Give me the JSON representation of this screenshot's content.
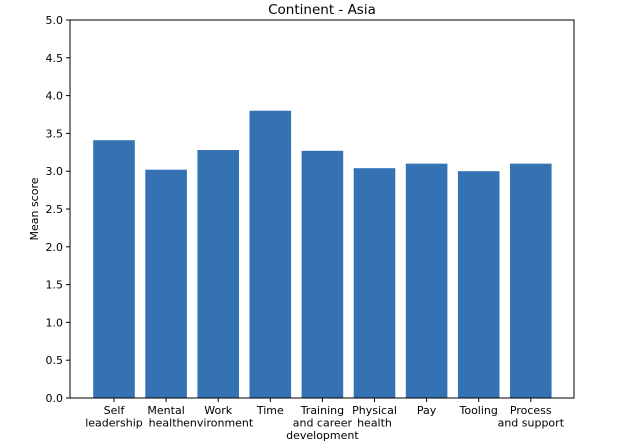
{
  "chart_data": {
    "type": "bar",
    "title": "Continent - Asia",
    "xlabel": "",
    "ylabel": "Mean score",
    "ylim": [
      0,
      5
    ],
    "yticks": [
      "0.0",
      "0.5",
      "1.0",
      "1.5",
      "2.0",
      "2.5",
      "3.0",
      "3.5",
      "4.0",
      "4.5",
      "5.0"
    ],
    "categories": [
      [
        "Self",
        "leadership"
      ],
      [
        "Mental",
        "health"
      ],
      [
        "Work",
        "environment"
      ],
      [
        "Time"
      ],
      [
        "Training",
        "and career",
        "development"
      ],
      [
        "Physical",
        "health"
      ],
      [
        "Pay"
      ],
      [
        "Tooling"
      ],
      [
        "Process",
        "and support"
      ]
    ],
    "values": [
      3.41,
      3.02,
      3.28,
      3.8,
      3.27,
      3.04,
      3.1,
      3.0,
      3.1
    ],
    "bar_color": "#3572b4",
    "grid": false,
    "legend": "none"
  }
}
